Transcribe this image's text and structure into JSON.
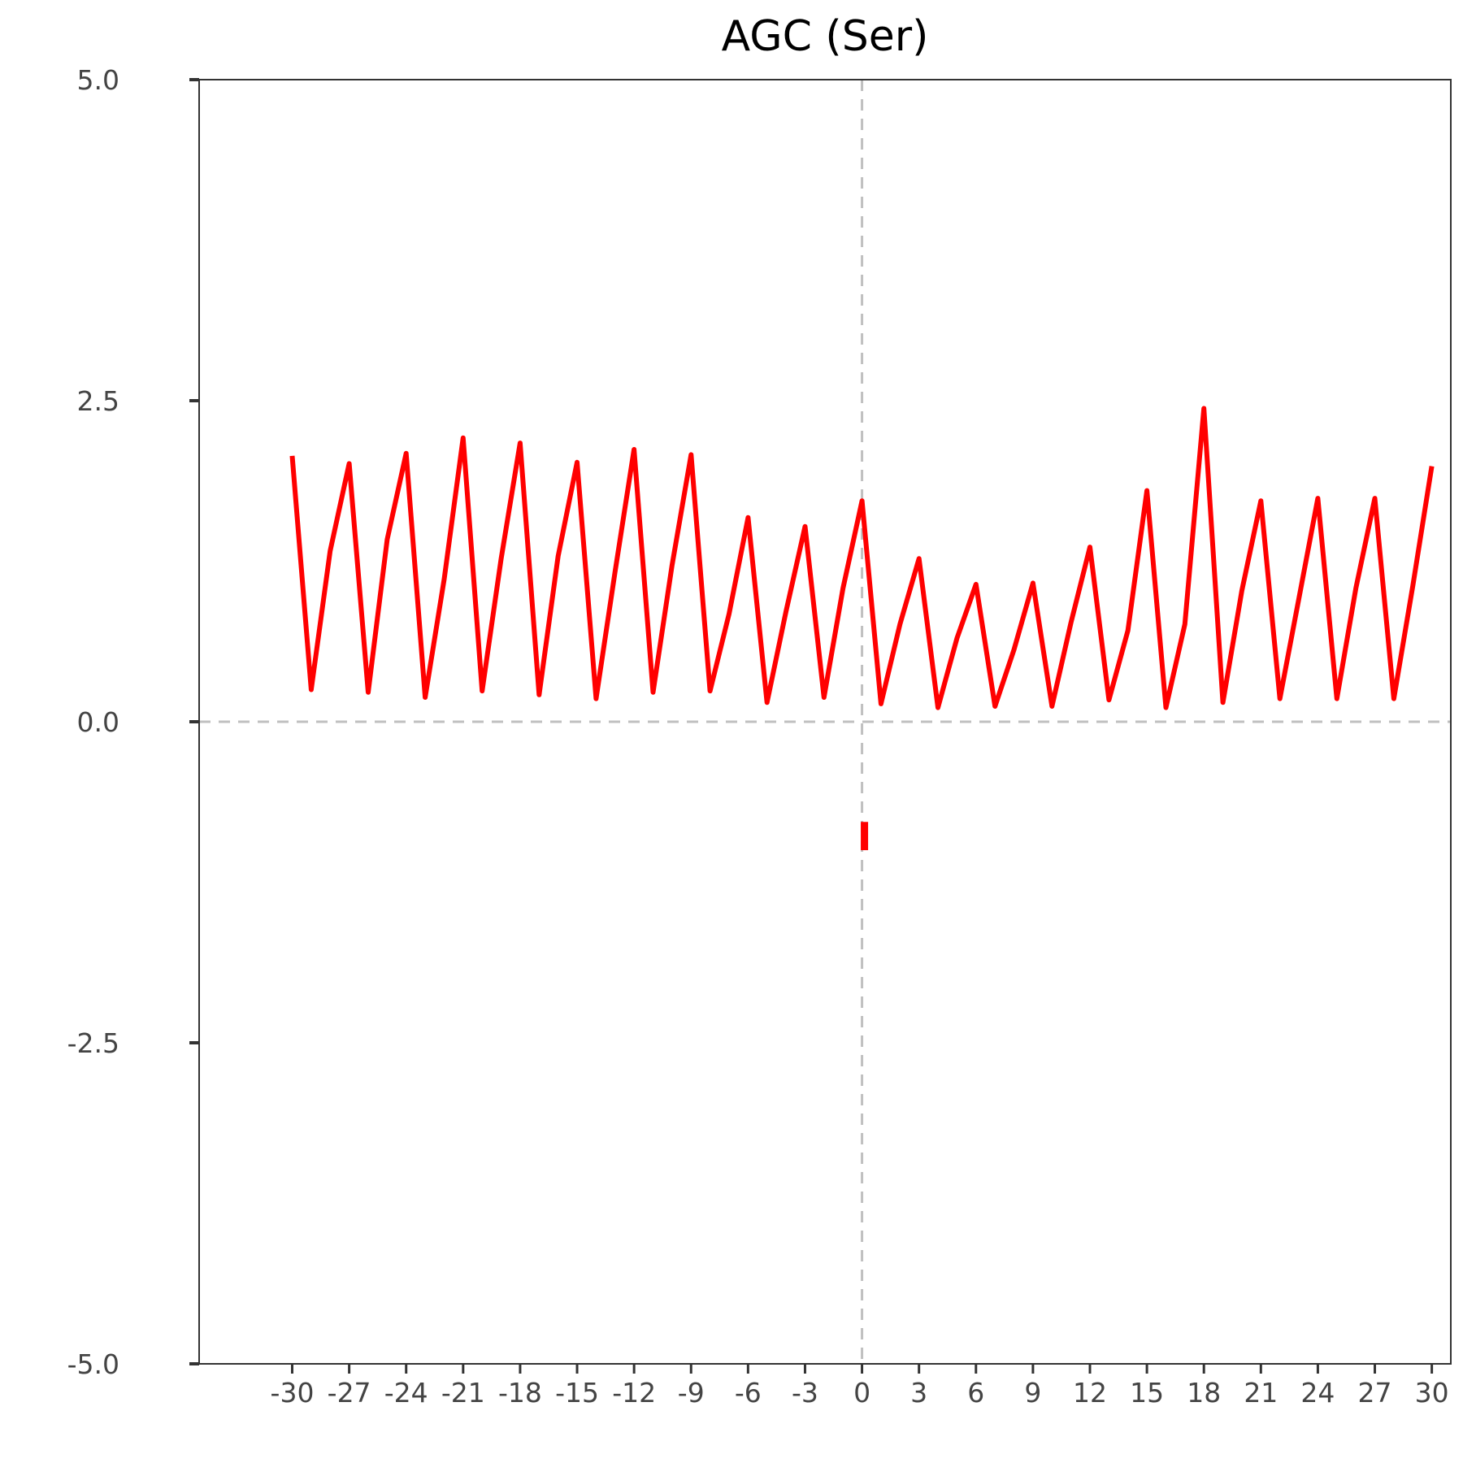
{
  "chart_data": {
    "type": "line",
    "title": "AGC (Ser)",
    "xlabel": "",
    "ylabel": "",
    "xlim": [
      -34.9,
      31
    ],
    "ylim": [
      -5,
      5
    ],
    "x_ticks": [
      -30,
      -27,
      -24,
      -21,
      -18,
      -15,
      -12,
      -9,
      -6,
      -3,
      0,
      3,
      6,
      9,
      12,
      15,
      18,
      21,
      24,
      27,
      30
    ],
    "y_ticks": [
      5.0,
      2.5,
      0.0,
      -2.5,
      -5.0
    ],
    "y_tick_labels": [
      "5.0",
      "2.5",
      "0.0",
      "-2.5",
      "-5.0"
    ],
    "reference_lines": {
      "x": 0,
      "y": 0,
      "style": "dashed",
      "color": "#c0c0c0"
    },
    "grid": false,
    "series": [
      {
        "color": "#ff0000",
        "x": [
          -30,
          -29,
          -28,
          -27,
          -26,
          -25,
          -24,
          -23,
          -22,
          -21,
          -20,
          -19,
          -18,
          -17,
          -16,
          -15,
          -14,
          -13,
          -12,
          -11,
          -10,
          -9,
          -8,
          -7,
          -6,
          -5,
          -4,
          -3,
          -2,
          -1,
          0,
          1,
          2,
          3,
          4,
          5,
          6,
          7,
          8,
          9,
          10,
          11,
          12,
          13,
          14,
          15,
          16,
          17,
          18,
          19,
          20,
          21,
          22,
          23,
          24,
          25,
          26,
          27,
          28,
          29,
          30
        ],
        "y": [
          2.07,
          0.25,
          1.33,
          2.01,
          0.23,
          1.42,
          2.09,
          0.19,
          1.11,
          2.21,
          0.24,
          1.27,
          2.17,
          0.21,
          1.29,
          2.02,
          0.18,
          1.17,
          2.12,
          0.23,
          1.22,
          2.08,
          0.24,
          0.84,
          1.59,
          0.15,
          0.86,
          1.52,
          0.19,
          1.04,
          1.72,
          0.14,
          0.76,
          1.27,
          0.11,
          0.65,
          1.07,
          0.12,
          0.56,
          1.08,
          0.12,
          0.77,
          1.36,
          0.17,
          0.71,
          1.8,
          0.11,
          0.76,
          2.44,
          0.15,
          1.02,
          1.72,
          0.18,
          0.96,
          1.74,
          0.18,
          1.04,
          1.74,
          0.18,
          1.06,
          1.99
        ]
      }
    ],
    "extra_marks": [
      {
        "type": "vertical-segment",
        "x": 0,
        "y_range": [
          -0.78,
          -1.0
        ],
        "color": "#ff0000"
      }
    ]
  }
}
